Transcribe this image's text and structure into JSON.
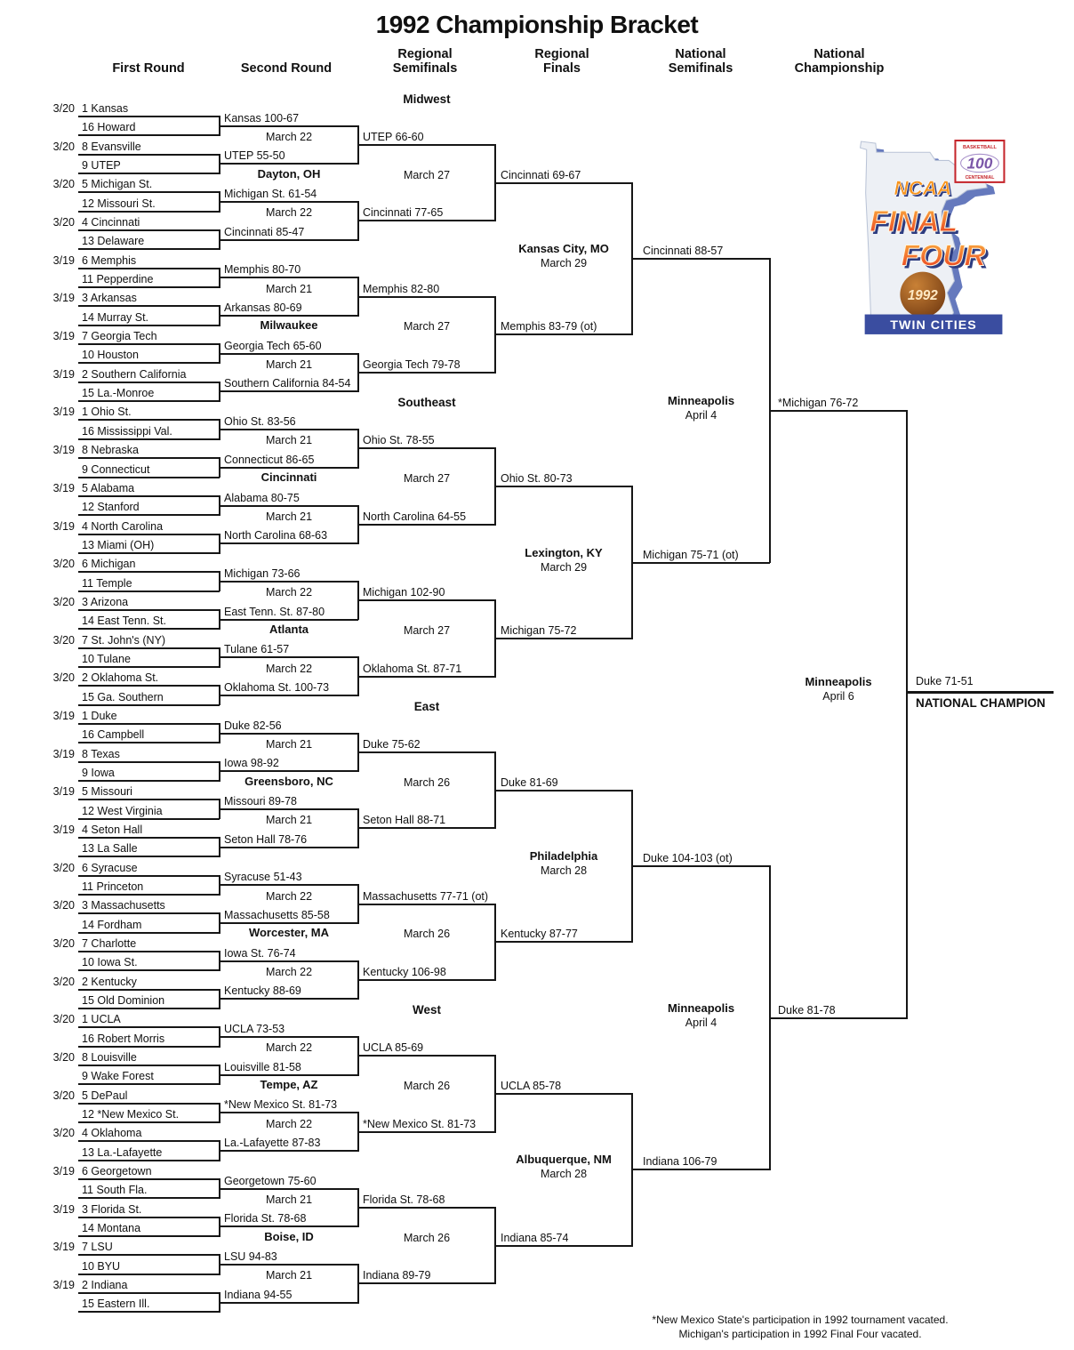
{
  "title": "1992 Championship Bracket",
  "column_headers": [
    [
      "First Round"
    ],
    [
      "Second Round"
    ],
    [
      "Regional",
      "Semifinals"
    ],
    [
      "Regional",
      "Finals"
    ],
    [
      "National",
      "Semifinals"
    ],
    [
      "National",
      "Championship"
    ]
  ],
  "regions": [
    {
      "name": "Midwest",
      "teams": [
        {
          "date": "3/20",
          "team": "1 Kansas"
        },
        {
          "team": "16 Howard"
        },
        {
          "date": "3/20",
          "team": "8 Evansville"
        },
        {
          "team": "9 UTEP"
        },
        {
          "date": "3/20",
          "team": "5 Michigan St."
        },
        {
          "team": "12 Missouri St."
        },
        {
          "date": "3/20",
          "team": "4 Cincinnati"
        },
        {
          "team": "13 Delaware"
        },
        {
          "date": "3/19",
          "team": "6 Memphis"
        },
        {
          "team": "11 Pepperdine"
        },
        {
          "date": "3/19",
          "team": "3 Arkansas"
        },
        {
          "team": "14 Murray St."
        },
        {
          "date": "3/19",
          "team": "7 Georgia Tech"
        },
        {
          "team": "10 Houston"
        },
        {
          "date": "3/19",
          "team": "2 Southern California"
        },
        {
          "team": "15 La.-Monroe"
        }
      ],
      "round1_results": [
        "Kansas 100-67",
        "UTEP 55-50",
        "Michigan St. 61-54",
        "Cincinnati 85-47",
        "Memphis 80-70",
        "Arkansas 80-69",
        "Georgia Tech 65-60",
        "Southern California 84-54"
      ],
      "round2_dates": [
        "March 22",
        "March 22",
        "March 21",
        "March 21"
      ],
      "round2_sites": [
        "Dayton, OH",
        "Milwaukee"
      ],
      "round2_results": [
        "UTEP 66-60",
        "Cincinnati 77-65",
        "Memphis 82-80",
        "Georgia Tech 79-78"
      ],
      "semifinal_date": "March 27",
      "semifinal_results": [
        "Cincinnati 69-67",
        "Memphis 83-79 (ot)"
      ],
      "final_site": [
        "Kansas City, MO",
        "March 29"
      ],
      "final_result": "Cincinnati 88-57"
    },
    {
      "name": "Southeast",
      "teams": [
        {
          "date": "3/19",
          "team": "1 Ohio St."
        },
        {
          "team": "16 Mississippi Val."
        },
        {
          "date": "3/19",
          "team": "8 Nebraska"
        },
        {
          "team": "9 Connecticut"
        },
        {
          "date": "3/19",
          "team": "5 Alabama"
        },
        {
          "team": "12 Stanford"
        },
        {
          "date": "3/19",
          "team": "4 North Carolina"
        },
        {
          "team": "13 Miami (OH)"
        },
        {
          "date": "3/20",
          "team": "6 Michigan"
        },
        {
          "team": "11 Temple"
        },
        {
          "date": "3/20",
          "team": "3 Arizona"
        },
        {
          "team": "14 East Tenn. St."
        },
        {
          "date": "3/20",
          "team": "7 St. John's (NY)"
        },
        {
          "team": "10 Tulane"
        },
        {
          "date": "3/20",
          "team": "2 Oklahoma St."
        },
        {
          "team": "15 Ga. Southern"
        }
      ],
      "round1_results": [
        "Ohio St. 83-56",
        "Connecticut 86-65",
        "Alabama 80-75",
        "North Carolina 68-63",
        "Michigan 73-66",
        "East Tenn. St. 87-80",
        "Tulane 61-57",
        "Oklahoma St. 100-73"
      ],
      "round2_dates": [
        "March 21",
        "March 21",
        "March 22",
        "March 22"
      ],
      "round2_sites": [
        "Cincinnati",
        "Atlanta"
      ],
      "round2_results": [
        "Ohio St. 78-55",
        "North Carolina 64-55",
        "Michigan 102-90",
        "Oklahoma St. 87-71"
      ],
      "semifinal_date": "March 27",
      "semifinal_results": [
        "Ohio St. 80-73",
        "Michigan 75-72"
      ],
      "final_site": [
        "Lexington, KY",
        "March 29"
      ],
      "final_result": "Michigan 75-71 (ot)"
    },
    {
      "name": "East",
      "teams": [
        {
          "date": "3/19",
          "team": "1 Duke"
        },
        {
          "team": "16 Campbell"
        },
        {
          "date": "3/19",
          "team": "8 Texas"
        },
        {
          "team": "9 Iowa"
        },
        {
          "date": "3/19",
          "team": "5 Missouri"
        },
        {
          "team": "12 West Virginia"
        },
        {
          "date": "3/19",
          "team": "4 Seton Hall"
        },
        {
          "team": "13 La Salle"
        },
        {
          "date": "3/20",
          "team": "6 Syracuse"
        },
        {
          "team": "11 Princeton"
        },
        {
          "date": "3/20",
          "team": "3 Massachusetts"
        },
        {
          "team": "14 Fordham"
        },
        {
          "date": "3/20",
          "team": "7 Charlotte"
        },
        {
          "team": "10 Iowa St."
        },
        {
          "date": "3/20",
          "team": "2 Kentucky"
        },
        {
          "team": "15 Old Dominion"
        }
      ],
      "round1_results": [
        "Duke 82-56",
        "Iowa 98-92",
        "Missouri 89-78",
        "Seton Hall 78-76",
        "Syracuse 51-43",
        "Massachusetts 85-58",
        "Iowa St. 76-74",
        "Kentucky 88-69"
      ],
      "round2_dates": [
        "March 21",
        "March 21",
        "March 22",
        "March 22"
      ],
      "round2_sites": [
        "Greensboro, NC",
        "Worcester, MA"
      ],
      "round2_results": [
        "Duke 75-62",
        "Seton Hall 88-71",
        "Massachusetts 77-71 (ot)",
        "Kentucky 106-98"
      ],
      "semifinal_date": "March 26",
      "semifinal_results": [
        "Duke 81-69",
        "Kentucky 87-77"
      ],
      "final_site": [
        "Philadelphia",
        "March 28"
      ],
      "final_result": "Duke 104-103 (ot)"
    },
    {
      "name": "West",
      "teams": [
        {
          "date": "3/20",
          "team": "1 UCLA"
        },
        {
          "team": "16 Robert Morris"
        },
        {
          "date": "3/20",
          "team": "8 Louisville"
        },
        {
          "team": "9 Wake Forest"
        },
        {
          "date": "3/20",
          "team": "5 DePaul"
        },
        {
          "team": "12 *New Mexico St."
        },
        {
          "date": "3/20",
          "team": "4 Oklahoma"
        },
        {
          "team": "13 La.-Lafayette"
        },
        {
          "date": "3/19",
          "team": "6 Georgetown"
        },
        {
          "team": "11 South Fla."
        },
        {
          "date": "3/19",
          "team": "3 Florida St."
        },
        {
          "team": "14 Montana"
        },
        {
          "date": "3/19",
          "team": "7 LSU"
        },
        {
          "team": "10 BYU"
        },
        {
          "date": "3/19",
          "team": "2 Indiana"
        },
        {
          "team": "15 Eastern Ill."
        }
      ],
      "round1_results": [
        "UCLA 73-53",
        "Louisville 81-58",
        "*New Mexico St. 81-73",
        "La.-Lafayette 87-83",
        "Georgetown 75-60",
        "Florida St. 78-68",
        "LSU 94-83",
        "Indiana 94-55"
      ],
      "round2_dates": [
        "March 22",
        "March 22",
        "March 21",
        "March 21"
      ],
      "round2_sites": [
        "Tempe, AZ",
        "Boise, ID"
      ],
      "round2_results": [
        "UCLA 85-69",
        "*New Mexico St. 81-73",
        "Florida St. 78-68",
        "Indiana 89-79"
      ],
      "semifinal_date": "March 26",
      "semifinal_results": [
        "UCLA 85-78",
        "Indiana 85-74"
      ],
      "final_site": [
        "Albuquerque, NM",
        "March 28"
      ],
      "final_result": "Indiana 106-79"
    }
  ],
  "final_four": {
    "semifinals": [
      {
        "site": [
          "Minneapolis",
          "April 4"
        ],
        "result": "*Michigan 76-72"
      },
      {
        "site": [
          "Minneapolis",
          "April 4"
        ],
        "result": "Duke 81-78"
      }
    ],
    "championship": {
      "site": [
        "Minneapolis",
        "April 6"
      ],
      "result": "Duke 71-51",
      "champion_label": "NATIONAL CHAMPION"
    }
  },
  "footnotes": [
    "*New Mexico State's participation in 1992 tournament vacated.",
    "Michigan's participation in 1992 Final Four vacated."
  ],
  "logo": {
    "ncaa": "NCAA",
    "final": "FINAL",
    "four": "FOUR",
    "year": "1992",
    "city": "TWIN CITIES",
    "badge_top": "BASKETBALL",
    "badge_num": "100",
    "badge_bottom": "CENTENNIAL",
    "colors": {
      "orange": "#f7941d",
      "red": "#e8371f",
      "navy": "#2d3c80",
      "state_fill": "#edf0f5",
      "state_shadow": "#6579bd",
      "banner_blue": "#3a4da0",
      "badge_red": "#c5252b",
      "badge_purple": "#7b57a8"
    }
  }
}
